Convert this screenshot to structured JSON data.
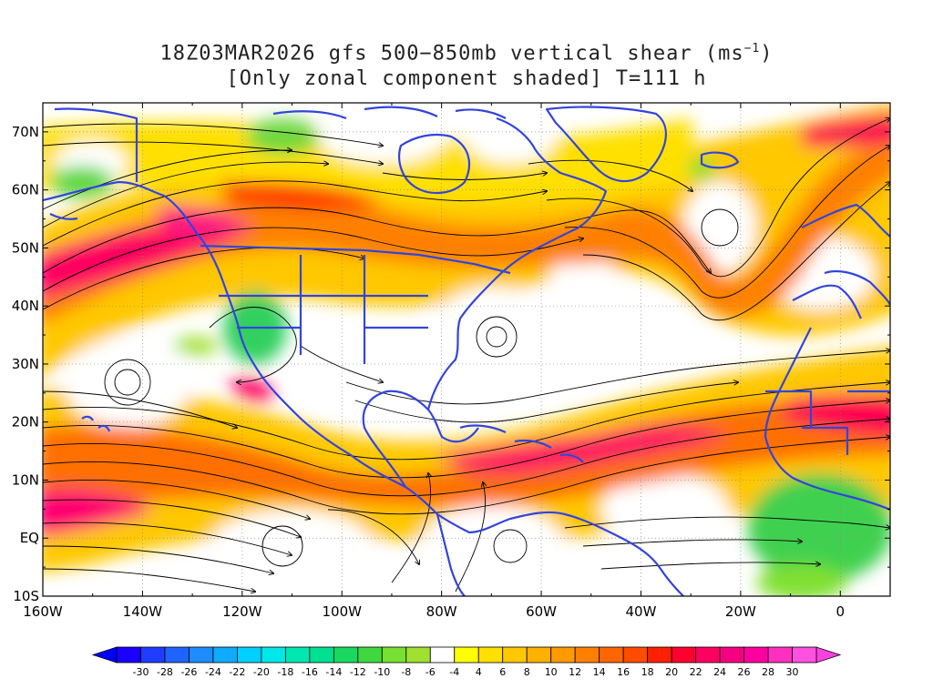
{
  "title": {
    "line1_prefix": "18Z03MAR2026 gfs 500−850mb vertical shear (ms",
    "line1_sup": "−1",
    "line1_suffix": ")",
    "line2": "[Only zonal component shaded] T=111 h"
  },
  "axes": {
    "lat_labels": [
      "70N",
      "60N",
      "50N",
      "40N",
      "30N",
      "20N",
      "10N",
      "EQ",
      "10S"
    ],
    "lat_values": [
      70,
      60,
      50,
      40,
      30,
      20,
      10,
      0,
      -10
    ],
    "lon_labels": [
      "160W",
      "140W",
      "120W",
      "100W",
      "80W",
      "60W",
      "40W",
      "20W",
      "0"
    ],
    "lon_values": [
      -160,
      -140,
      -120,
      -100,
      -80,
      -60,
      -40,
      -20,
      0
    ],
    "lon_range": [
      -160,
      10
    ],
    "lat_range": [
      -10,
      75
    ]
  },
  "colorbar": {
    "labels": [
      "-30",
      "-28",
      "-26",
      "-24",
      "-22",
      "-20",
      "-18",
      "-16",
      "-14",
      "-12",
      "-10",
      "-8",
      "-6",
      "-4",
      "4",
      "6",
      "8",
      "10",
      "12",
      "14",
      "16",
      "18",
      "20",
      "22",
      "24",
      "26",
      "28",
      "30"
    ],
    "colors": [
      "#1a00ff",
      "#1f3cff",
      "#1f64ff",
      "#1e8cff",
      "#10aaff",
      "#00d0ff",
      "#00e8e8",
      "#00e8b0",
      "#00e090",
      "#18d860",
      "#40d840",
      "#78e030",
      "#a0e030",
      "#ffffff",
      "#ffff00",
      "#ffe000",
      "#ffc800",
      "#ffb000",
      "#ff9a00",
      "#ff8000",
      "#ff6600",
      "#ff4c00",
      "#ff2000",
      "#ff0030",
      "#ff0060",
      "#f50080",
      "#ff00a0",
      "#ff30c0",
      "#ff50e0"
    ],
    "left_arrow_color": "#0000ff",
    "right_arrow_color": "#ff40e0"
  },
  "map": {
    "coastline_color": "#3344dd",
    "streamline_color": "#000000",
    "gridline_lats": [
      -10,
      0,
      10,
      20,
      30,
      40,
      50,
      60,
      70
    ],
    "gridline_lons": [
      -160,
      -140,
      -120,
      -100,
      -80,
      -60,
      -40,
      -20,
      0
    ]
  }
}
